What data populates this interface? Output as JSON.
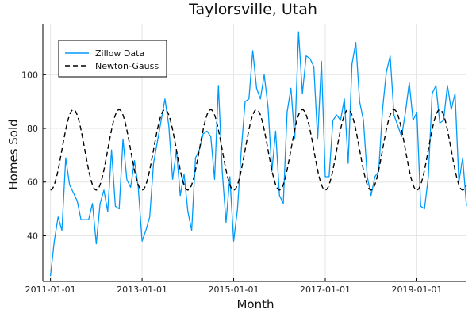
{
  "chart_data": {
    "type": "line",
    "title": "Taylorsville, Utah",
    "xlabel": "Month",
    "ylabel": "Homes Sold",
    "x_start": "2011-01-01",
    "x_ticks": [
      "2011-01-01",
      "2013-01-01",
      "2015-01-01",
      "2017-01-01",
      "2019-01-01"
    ],
    "y_ticks": [
      40,
      60,
      80,
      100
    ],
    "xlim": [
      "2010-11-01",
      "2020-02-01"
    ],
    "ylim": [
      23,
      119
    ],
    "grid": true,
    "legend_position": "top-left",
    "series": [
      {
        "name": "Zillow Data",
        "color": "#009AFA",
        "style": "solid",
        "values": [
          25,
          38,
          47,
          42,
          69,
          59,
          56,
          53,
          46,
          46,
          46,
          52,
          37,
          52,
          57,
          49,
          72,
          51,
          50,
          76,
          61,
          58,
          68,
          58,
          38,
          42,
          47,
          67,
          75,
          83,
          91,
          81,
          61,
          72,
          55,
          63,
          49,
          42,
          69,
          72,
          78,
          79,
          77,
          61,
          96,
          64,
          45,
          62,
          38,
          50,
          72,
          90,
          91,
          109,
          95,
          91,
          100,
          88,
          64,
          79,
          55,
          52,
          86,
          95,
          76,
          116,
          93,
          107,
          106,
          103,
          76,
          105,
          62,
          62,
          83,
          85,
          83,
          91,
          67,
          104,
          112,
          90,
          83,
          62,
          55,
          62,
          64,
          87,
          101,
          107,
          85,
          81,
          77,
          86,
          97,
          83,
          86,
          51,
          50,
          62,
          93,
          96,
          82,
          83,
          96,
          87,
          93,
          60,
          69,
          51
        ]
      },
      {
        "name": "Newton-Gauss",
        "color": "#000000",
        "style": "dashed",
        "model": {
          "mean": 72,
          "amplitude": 15,
          "period_months": 12,
          "peak_month_offset": 6
        }
      }
    ]
  }
}
